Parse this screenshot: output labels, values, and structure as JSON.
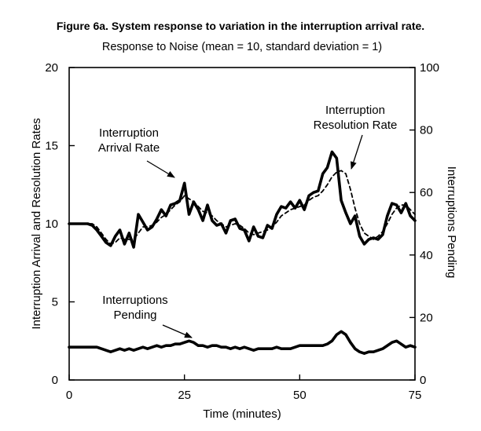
{
  "figure_title": "Figure 6a. System response to variation in the interruption arrival rate.",
  "chart_data": {
    "type": "line",
    "title": "Response to Noise (mean = 10, standard deviation = 1)",
    "xlabel": "Time (minutes)",
    "ylabel": "Interruption Arrival and Resolution Rates",
    "y2label": "Interruptions Pending",
    "xlim": [
      0,
      75
    ],
    "ylim": [
      0,
      20
    ],
    "y2lim": [
      0,
      100
    ],
    "xticks": [
      "0",
      "25",
      "50",
      "75"
    ],
    "yticks": [
      "0",
      "5",
      "10",
      "15",
      "20"
    ],
    "y2ticks": [
      "0",
      "20",
      "40",
      "60",
      "80",
      "100"
    ],
    "grid": false,
    "series": [
      {
        "name": "Interruption Arrival Rate",
        "axis": "left",
        "style": "solid-thick",
        "color": "#000000",
        "x": [
          0,
          2,
          4,
          5,
          6,
          7,
          8,
          9,
          10,
          11,
          12,
          13,
          14,
          15,
          16,
          17,
          18,
          19,
          20,
          21,
          22,
          23,
          24,
          25,
          26,
          27,
          28,
          29,
          30,
          31,
          32,
          33,
          34,
          35,
          36,
          37,
          38,
          39,
          40,
          41,
          42,
          43,
          44,
          45,
          46,
          47,
          48,
          49,
          50,
          51,
          52,
          53,
          54,
          55,
          56,
          57,
          58,
          59,
          60,
          61,
          62,
          63,
          64,
          65,
          66,
          67,
          68,
          69,
          70,
          71,
          72,
          73,
          74,
          75
        ],
        "y": [
          10,
          10,
          10,
          9.9,
          9.6,
          9.2,
          8.8,
          8.6,
          9.2,
          9.6,
          8.7,
          9.4,
          8.5,
          10.6,
          10.1,
          9.6,
          9.8,
          10.3,
          10.9,
          10.5,
          11.2,
          11.3,
          11.5,
          12.6,
          10.6,
          11.4,
          10.9,
          10.2,
          11.2,
          10.2,
          9.9,
          10.0,
          9.4,
          10.2,
          10.3,
          9.7,
          9.6,
          8.9,
          9.8,
          9.2,
          9.1,
          9.9,
          9.7,
          10.6,
          11.1,
          11.0,
          11.4,
          11.0,
          11.5,
          10.9,
          11.8,
          12.0,
          12.1,
          13.2,
          13.6,
          14.6,
          14.2,
          11.5,
          10.7,
          10.0,
          10.5,
          9.2,
          8.7,
          9.0,
          9.1,
          9.0,
          9.3,
          10.5,
          11.3,
          11.2,
          10.7,
          11.3,
          10.5,
          10.2
        ]
      },
      {
        "name": "Interruption Resolution Rate",
        "axis": "left",
        "style": "dashed",
        "color": "#000000",
        "x": [
          0,
          4,
          5,
          6,
          7,
          8,
          9,
          10,
          11,
          12,
          13,
          14,
          15,
          16,
          17,
          18,
          19,
          20,
          21,
          22,
          23,
          24,
          25,
          26,
          27,
          28,
          29,
          30,
          31,
          32,
          33,
          34,
          35,
          36,
          37,
          38,
          39,
          40,
          41,
          42,
          43,
          44,
          45,
          46,
          47,
          48,
          49,
          50,
          51,
          52,
          53,
          54,
          55,
          56,
          57,
          58,
          59,
          60,
          61,
          62,
          63,
          64,
          65,
          66,
          67,
          68,
          69,
          70,
          71,
          72,
          73,
          74,
          75
        ],
        "y": [
          10,
          10,
          10,
          9.8,
          9.4,
          9.0,
          8.7,
          8.8,
          9.1,
          9.0,
          9.0,
          9.0,
          9.4,
          9.8,
          9.8,
          9.9,
          10.1,
          10.4,
          10.6,
          10.9,
          11.2,
          11.4,
          11.8,
          11.6,
          11.4,
          11.1,
          10.8,
          10.7,
          10.5,
          10.2,
          10.0,
          9.8,
          9.9,
          10.0,
          9.9,
          9.7,
          9.4,
          9.3,
          9.4,
          9.5,
          9.6,
          9.8,
          10.1,
          10.5,
          10.7,
          10.9,
          11.0,
          11.1,
          11.2,
          11.5,
          11.7,
          11.8,
          12.1,
          12.5,
          13.0,
          13.3,
          13.4,
          13.2,
          12.2,
          11.0,
          10.0,
          9.4,
          9.2,
          9.0,
          9.2,
          9.5,
          10.0,
          10.6,
          11.0,
          11.2,
          11.2,
          10.9,
          10.6
        ]
      },
      {
        "name": "Interruptions Pending",
        "axis": "right",
        "style": "solid-thick",
        "color": "#000000",
        "x": [
          0,
          2,
          4,
          6,
          7,
          8,
          9,
          10,
          11,
          12,
          13,
          14,
          15,
          16,
          17,
          18,
          19,
          20,
          21,
          22,
          23,
          24,
          25,
          26,
          27,
          28,
          29,
          30,
          31,
          32,
          33,
          34,
          35,
          36,
          37,
          38,
          39,
          40,
          41,
          42,
          43,
          44,
          45,
          46,
          47,
          48,
          49,
          50,
          51,
          52,
          53,
          54,
          55,
          56,
          57,
          58,
          59,
          60,
          61,
          62,
          63,
          64,
          65,
          66,
          67,
          68,
          69,
          70,
          71,
          72,
          73,
          74,
          75
        ],
        "y": [
          10.5,
          10.5,
          10.5,
          10.5,
          10.0,
          9.5,
          9.0,
          9.5,
          10.0,
          9.5,
          10.0,
          9.5,
          10.0,
          10.5,
          10.0,
          10.5,
          11.0,
          10.5,
          11.0,
          11.0,
          11.5,
          11.5,
          12.0,
          12.5,
          12.0,
          11.0,
          11.0,
          10.5,
          11.0,
          11.0,
          10.5,
          10.5,
          10.0,
          10.5,
          10.0,
          10.5,
          10.0,
          9.5,
          10.0,
          10.0,
          10.0,
          10.0,
          10.5,
          10.0,
          10.0,
          10.0,
          10.5,
          11.0,
          11.0,
          11.0,
          11.0,
          11.0,
          11.0,
          11.5,
          12.5,
          14.5,
          15.5,
          14.5,
          12.0,
          10.0,
          9.0,
          8.5,
          9.0,
          9.0,
          9.5,
          10.0,
          11.0,
          12.0,
          12.5,
          11.5,
          10.5,
          11.0,
          10.5
        ]
      }
    ],
    "annotations": [
      {
        "lines": [
          "Interruption",
          "Arrival Rate"
        ],
        "target": "Interruption Arrival Rate"
      },
      {
        "lines": [
          "Interruption",
          "Resolution Rate"
        ],
        "target": "Interruption Resolution Rate"
      },
      {
        "lines": [
          "Interruptions",
          "Pending"
        ],
        "target": "Interruptions Pending"
      }
    ]
  }
}
